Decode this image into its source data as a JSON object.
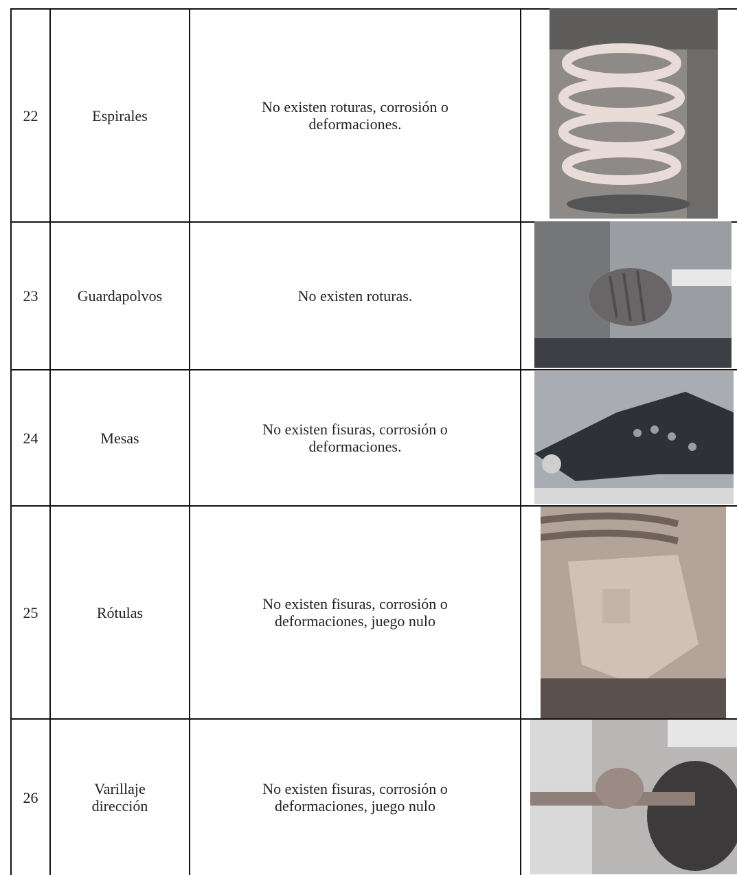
{
  "table": {
    "rows": [
      {
        "number": 22,
        "component": "Espirales",
        "description": "No existen roturas, corrosión o deformaciones."
      },
      {
        "number": 23,
        "component": "Guardapolvos",
        "description": "No existen roturas."
      },
      {
        "number": 24,
        "component": "Mesas",
        "description": "No existen fisuras, corrosión o deformaciones."
      },
      {
        "number": 25,
        "component": "Rótulas",
        "description": "No existen fisuras, corrosión o deformaciones, juego nulo"
      },
      {
        "number": 26,
        "component": "Varillaje dirección",
        "description": "No existen fisuras, corrosión o deformaciones, juego nulo"
      }
    ]
  }
}
